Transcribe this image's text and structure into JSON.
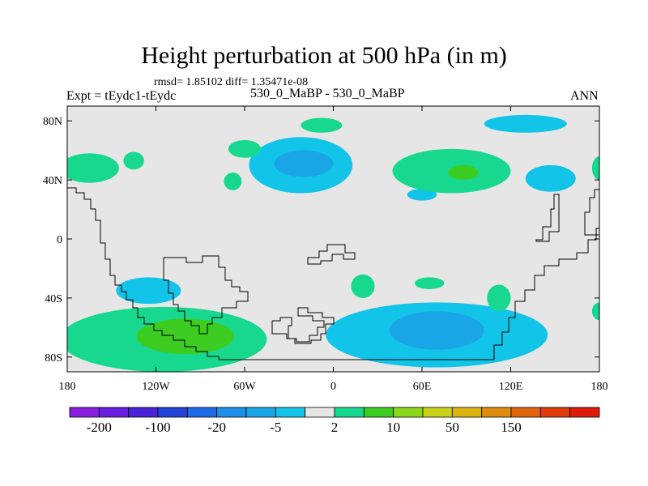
{
  "figure": {
    "title": "Height perturbation at 500 hPa (in m)",
    "stats": "rmsd= 1.85102 diff= 1.35471e-08",
    "left_label": "Expt = tEydc1-tEydc",
    "center_label": "530_0_MaBP - 530_0_MaBP",
    "right_label": "ANN"
  },
  "chart_data": {
    "type": "heatmap",
    "title": "Height perturbation at 500 hPa (in m)",
    "xlabel": "",
    "ylabel": "",
    "xlim": [
      -180,
      180
    ],
    "ylim": [
      -90,
      90
    ],
    "x_ticks": [
      {
        "value": -180,
        "label": "180"
      },
      {
        "value": -120,
        "label": "120W"
      },
      {
        "value": -60,
        "label": "60W"
      },
      {
        "value": 0,
        "label": "0"
      },
      {
        "value": 60,
        "label": "60E"
      },
      {
        "value": 120,
        "label": "120E"
      },
      {
        "value": 180,
        "label": "180"
      }
    ],
    "y_ticks": [
      {
        "value": 80,
        "label": "80N"
      },
      {
        "value": 40,
        "label": "40N"
      },
      {
        "value": 0,
        "label": "0"
      },
      {
        "value": -40,
        "label": "40S"
      },
      {
        "value": -80,
        "label": "80S"
      }
    ],
    "colorbar": {
      "colors": [
        "#8a1ee0",
        "#6a1ee0",
        "#4a22d8",
        "#2244d8",
        "#1e6ae6",
        "#1e8ee8",
        "#1aa6e6",
        "#12c4e8",
        "#e6e6e6",
        "#18d890",
        "#3ccc22",
        "#8ad81c",
        "#c8d21a",
        "#dcb410",
        "#de8c0c",
        "#e0640a",
        "#e03c0a",
        "#e01a0a"
      ],
      "labels": [
        {
          "after_box": 1,
          "text": "-200"
        },
        {
          "after_box": 3,
          "text": "-100"
        },
        {
          "after_box": 5,
          "text": "-20"
        },
        {
          "after_box": 7,
          "text": "-5"
        },
        {
          "after_box": 9,
          "text": "2"
        },
        {
          "after_box": 11,
          "text": "10"
        },
        {
          "after_box": 13,
          "text": "50"
        },
        {
          "after_box": 15,
          "text": "150"
        }
      ]
    },
    "regions": [
      {
        "name": "negative-north-central",
        "level": -5,
        "color": "#12c4e8",
        "lon": -22,
        "lat": 50,
        "rlon": 35,
        "rlat": 19
      },
      {
        "name": "negative-north-central-core",
        "level": -20,
        "color": "#1aa6e6",
        "lon": -20,
        "lat": 51,
        "rlon": 20,
        "rlat": 9
      },
      {
        "name": "negative-south-atlantic-indian",
        "level": -5,
        "color": "#12c4e8",
        "lon": 70,
        "lat": -65,
        "rlon": 75,
        "rlat": 22
      },
      {
        "name": "negative-south-indian-core",
        "level": -20,
        "color": "#1aa6e6",
        "lon": 70,
        "lat": -62,
        "rlon": 32,
        "rlat": 13
      },
      {
        "name": "negative-south-pacific",
        "level": -5,
        "color": "#12c4e8",
        "lon": -125,
        "lat": -35,
        "rlon": 22,
        "rlat": 9
      },
      {
        "name": "negative-north-pacific-east",
        "level": -5,
        "color": "#12c4e8",
        "lon": 147,
        "lat": 41,
        "rlon": 17,
        "rlat": 9
      },
      {
        "name": "negative-arctic",
        "level": -5,
        "color": "#12c4e8",
        "lon": 130,
        "lat": 78,
        "rlon": 28,
        "rlat": 6
      },
      {
        "name": "negative-asia-small",
        "level": -5,
        "color": "#12c4e8",
        "lon": 60,
        "lat": 30,
        "rlon": 10,
        "rlat": 4
      },
      {
        "name": "positive-north-pacific-west",
        "level": 2,
        "color": "#18d890",
        "lon": -165,
        "lat": 48,
        "rlon": 20,
        "rlat": 10
      },
      {
        "name": "positive-north-america-small",
        "level": 2,
        "color": "#18d890",
        "lon": -135,
        "lat": 53,
        "rlon": 7,
        "rlat": 6
      },
      {
        "name": "positive-north-america-mid",
        "level": 2,
        "color": "#18d890",
        "lon": -60,
        "lat": 61,
        "rlon": 11,
        "rlat": 6
      },
      {
        "name": "positive-north-america-low",
        "level": 2,
        "color": "#18d890",
        "lon": -68,
        "lat": 39,
        "rlon": 6,
        "rlat": 6
      },
      {
        "name": "positive-arctic-atlantic",
        "level": 2,
        "color": "#18d890",
        "lon": -8,
        "lat": 77,
        "rlon": 14,
        "rlat": 5
      },
      {
        "name": "positive-asia",
        "level": 2,
        "color": "#18d890",
        "lon": 80,
        "lat": 46,
        "rlon": 40,
        "rlat": 15
      },
      {
        "name": "positive-asia-core",
        "level": 10,
        "color": "#3ccc22",
        "lon": 88,
        "lat": 45,
        "rlon": 10,
        "rlat": 5
      },
      {
        "name": "positive-atlantic-east",
        "level": 2,
        "color": "#18d890",
        "lon": 180,
        "lat": 48,
        "rlon": 5,
        "rlat": 8
      },
      {
        "name": "positive-south-atlantic",
        "level": 2,
        "color": "#18d890",
        "lon": 20,
        "lat": -32,
        "rlon": 8,
        "rlat": 8
      },
      {
        "name": "positive-south-atlantic-east",
        "level": 2,
        "color": "#18d890",
        "lon": 65,
        "lat": -30,
        "rlon": 10,
        "rlat": 4
      },
      {
        "name": "positive-indian-ocean",
        "level": 2,
        "color": "#18d890",
        "lon": 112,
        "lat": -40,
        "rlon": 8,
        "rlat": 9
      },
      {
        "name": "positive-south-pacific-east",
        "level": 2,
        "color": "#18d890",
        "lon": 180,
        "lat": -49,
        "rlon": 5,
        "rlat": 6
      },
      {
        "name": "positive-south-pacific",
        "level": 2,
        "color": "#18d890",
        "lon": -115,
        "lat": -68,
        "rlon": 70,
        "rlat": 22
      },
      {
        "name": "positive-south-pacific-core",
        "level": 10,
        "color": "#3ccc22",
        "lon": -100,
        "lat": -66,
        "rlon": 33,
        "rlat": 12
      }
    ]
  }
}
